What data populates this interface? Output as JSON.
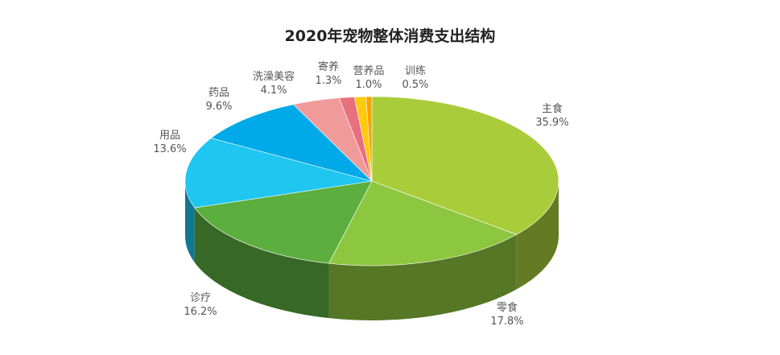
{
  "chart_data": {
    "type": "pie",
    "title": "2020年宠物整体消费支出结构",
    "unit": "%",
    "slices": [
      {
        "label": "主食",
        "value": 35.9,
        "display": "35.9%",
        "color": "#a9cd3a"
      },
      {
        "label": "零食",
        "value": 17.8,
        "display": "17.8%",
        "color": "#8dc63f"
      },
      {
        "label": "诊疗",
        "value": 16.2,
        "display": "16.2%",
        "color": "#5cae3e"
      },
      {
        "label": "用品",
        "value": 13.6,
        "display": "13.6%",
        "color": "#1ec6f0"
      },
      {
        "label": "药品",
        "value": 9.6,
        "display": "9.6%",
        "color": "#00aae8"
      },
      {
        "label": "洗澡美容",
        "value": 4.1,
        "display": "4.1%",
        "color": "#f09a9a"
      },
      {
        "label": "寄养",
        "value": 1.3,
        "display": "1.3%",
        "color": "#e8707e"
      },
      {
        "label": "营养品",
        "value": 1.0,
        "display": "1.0%",
        "color": "#ffc90e"
      },
      {
        "label": "训练",
        "value": 0.5,
        "display": "0.5%",
        "color": "#f5a300"
      }
    ],
    "legend": "none",
    "style": "3d"
  }
}
